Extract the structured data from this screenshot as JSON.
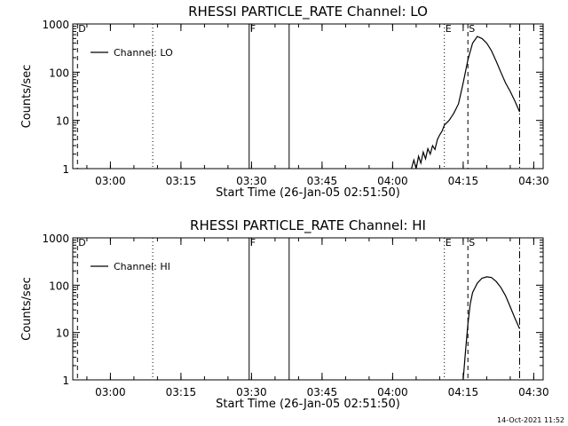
{
  "chart_data": [
    {
      "type": "line",
      "title": "RHESSI PARTICLE_RATE Channel: LO",
      "xlabel": "Start Time (26-Jan-05 02:51:50)",
      "ylabel": "Counts/sec",
      "yscale": "log",
      "xlim": [
        "02:52",
        "04:32"
      ],
      "ylim": [
        1,
        1000
      ],
      "x_ticks": [
        "03:00",
        "03:15",
        "03:30",
        "03:45",
        "04:00",
        "04:15",
        "04:30"
      ],
      "y_ticks": [
        "1",
        "10",
        "100",
        "1000"
      ],
      "legend": {
        "entry": "Channel: LO",
        "placement": "top-left"
      },
      "markers": [
        {
          "label": "D",
          "time": "02:53",
          "style": "dashed"
        },
        {
          "label": "",
          "time": "03:09",
          "style": "dotted"
        },
        {
          "label": "F",
          "time": "03:29.5",
          "style": "solid"
        },
        {
          "label": "",
          "time": "03:38",
          "style": "solid"
        },
        {
          "label": "E",
          "time": "04:11",
          "style": "dotted"
        },
        {
          "label": "S",
          "time": "04:16",
          "style": "dashed"
        },
        {
          "label": "",
          "time": "04:27",
          "style": "dashdot"
        }
      ],
      "series": [
        {
          "name": "Channel: LO",
          "x": [
            "04:04",
            "04:04.5",
            "04:05",
            "04:05.5",
            "04:06",
            "04:06.5",
            "04:07",
            "04:07.5",
            "04:08",
            "04:08.5",
            "04:09",
            "04:09.5",
            "04:10",
            "04:10.5",
            "04:11",
            "04:12",
            "04:13",
            "04:14",
            "04:15",
            "04:16",
            "04:17",
            "04:18",
            "04:19",
            "04:20",
            "04:21",
            "04:22",
            "04:23",
            "04:24",
            "04:25",
            "04:26",
            "04:27"
          ],
          "y": [
            1,
            1.5,
            1,
            1.8,
            1.3,
            2.2,
            1.6,
            2.6,
            2,
            3,
            2.5,
            4,
            5,
            6,
            8,
            10,
            14,
            22,
            60,
            180,
            400,
            550,
            500,
            400,
            280,
            170,
            100,
            60,
            40,
            25,
            15
          ]
        }
      ]
    },
    {
      "type": "line",
      "title": "RHESSI PARTICLE_RATE Channel: HI",
      "xlabel": "Start Time (26-Jan-05 02:51:50)",
      "ylabel": "Counts/sec",
      "yscale": "log",
      "xlim": [
        "02:52",
        "04:32"
      ],
      "ylim": [
        1,
        1000
      ],
      "x_ticks": [
        "03:00",
        "03:15",
        "03:30",
        "03:45",
        "04:00",
        "04:15",
        "04:30"
      ],
      "y_ticks": [
        "1",
        "10",
        "100",
        "1000"
      ],
      "legend": {
        "entry": "Channel: HI",
        "placement": "top-left"
      },
      "markers": [
        {
          "label": "D",
          "time": "02:53",
          "style": "dashed"
        },
        {
          "label": "",
          "time": "03:09",
          "style": "dotted"
        },
        {
          "label": "F",
          "time": "03:29.5",
          "style": "solid"
        },
        {
          "label": "",
          "time": "03:38",
          "style": "solid"
        },
        {
          "label": "E",
          "time": "04:11",
          "style": "dotted"
        },
        {
          "label": "S",
          "time": "04:16",
          "style": "dashed"
        },
        {
          "label": "",
          "time": "04:27",
          "style": "dashdot"
        }
      ],
      "series": [
        {
          "name": "Channel: HI",
          "x": [
            "04:15",
            "04:15.5",
            "04:16",
            "04:16.5",
            "04:17",
            "04:18",
            "04:19",
            "04:20",
            "04:21",
            "04:22",
            "04:23",
            "04:24",
            "04:25",
            "04:26",
            "04:27"
          ],
          "y": [
            1,
            4,
            15,
            40,
            70,
            110,
            140,
            150,
            145,
            120,
            90,
            60,
            35,
            20,
            12
          ]
        }
      ]
    }
  ],
  "footer": {
    "timestamp": "14-Oct-2021 11:52"
  }
}
